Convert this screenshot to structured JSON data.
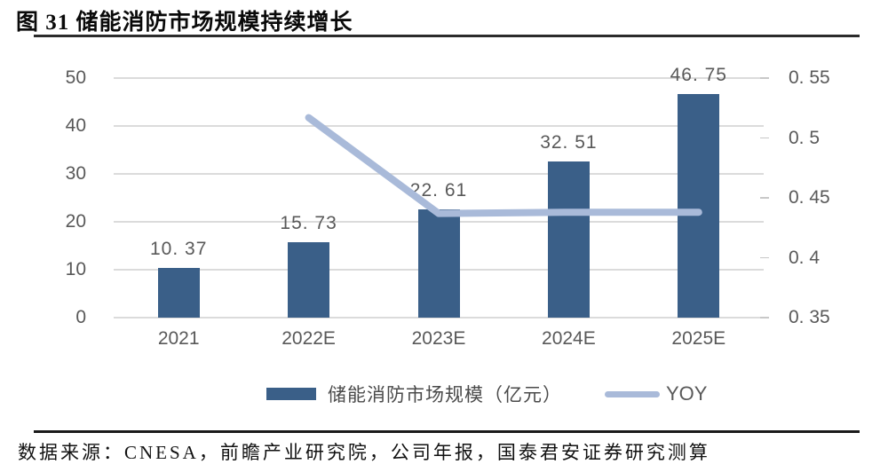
{
  "figure": {
    "title": "图 31 储能消防市场规模持续增长",
    "source": "数据来源：CNESA，前瞻产业研究院，公司年报，国泰君安证券研究测算"
  },
  "legend": {
    "bars_label": "储能消防市场规模（亿元）",
    "line_label": "YOY"
  },
  "colors": {
    "bar": "#3a5f88",
    "line": "#a9bad9",
    "grid": "#dbdbdb",
    "axis_text": "#595959",
    "rule": "#1a1a1a"
  },
  "chart_data": {
    "type": "bar+line",
    "title": "储能消防市场规模持续增长",
    "categories": [
      "2021",
      "2022E",
      "2023E",
      "2024E",
      "2025E"
    ],
    "series": [
      {
        "name": "储能消防市场规模（亿元）",
        "type": "bar",
        "axis": "left",
        "values": [
          10.37,
          15.73,
          22.61,
          32.51,
          46.75
        ],
        "labels": [
          "10. 37",
          "15. 73",
          "22. 61",
          "32. 51",
          "46. 75"
        ]
      },
      {
        "name": "YOY",
        "type": "line",
        "axis": "right",
        "values": [
          null,
          0.517,
          0.437,
          0.438,
          0.438
        ]
      }
    ],
    "left_axis": {
      "min": 0,
      "max": 50,
      "tick_values": [
        50,
        40,
        30,
        20,
        10,
        0
      ],
      "tick_labels": [
        "50",
        "40",
        "30",
        "20",
        "10",
        "0"
      ]
    },
    "right_axis": {
      "min": 0.35,
      "max": 0.55,
      "tick_values": [
        0.55,
        0.5,
        0.45,
        0.4,
        0.35
      ],
      "tick_labels": [
        "0. 55",
        "0. 5",
        "0. 45",
        "0. 4",
        "0. 35"
      ]
    },
    "grid": true,
    "legend_position": "bottom"
  }
}
